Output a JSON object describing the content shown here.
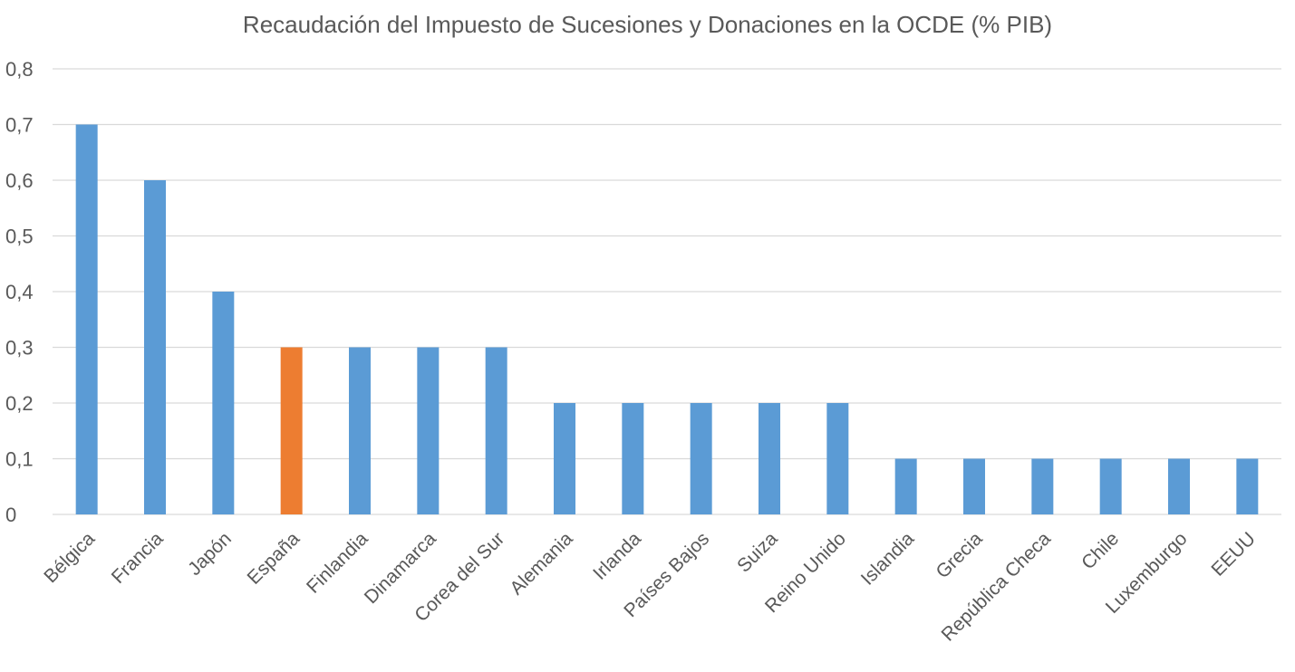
{
  "chart_data": {
    "type": "bar",
    "title": "Recaudación del Impuesto de Sucesiones y Donaciones en la OCDE (% PIB)",
    "xlabel": "",
    "ylabel": "",
    "ylim": [
      0,
      0.8
    ],
    "yticks": [
      0,
      0.1,
      0.2,
      0.3,
      0.4,
      0.5,
      0.6,
      0.7,
      0.8
    ],
    "ytick_labels": [
      "0",
      "0,1",
      "0,2",
      "0,3",
      "0,4",
      "0,5",
      "0,6",
      "0,7",
      "0,8"
    ],
    "grid": true,
    "legend": "none",
    "categories": [
      "Bélgica",
      "Francia",
      "Japón",
      "España",
      "Finlandia",
      "Dinamarca",
      "Corea del Sur",
      "Alemania",
      "Irlanda",
      "Países Bajos",
      "Suiza",
      "Reino Unido",
      "Islandia",
      "Grecia",
      "República Checa",
      "Chile",
      "Luxemburgo",
      "EEUU"
    ],
    "values": [
      0.7,
      0.6,
      0.4,
      0.3,
      0.3,
      0.3,
      0.3,
      0.2,
      0.2,
      0.2,
      0.2,
      0.2,
      0.1,
      0.1,
      0.1,
      0.1,
      0.1,
      0.1
    ],
    "highlight_category": "España",
    "colors": {
      "bar": "#5B9BD5",
      "highlight": "#ED7D31",
      "grid": "#D9D9D9",
      "text": "#595959"
    }
  }
}
